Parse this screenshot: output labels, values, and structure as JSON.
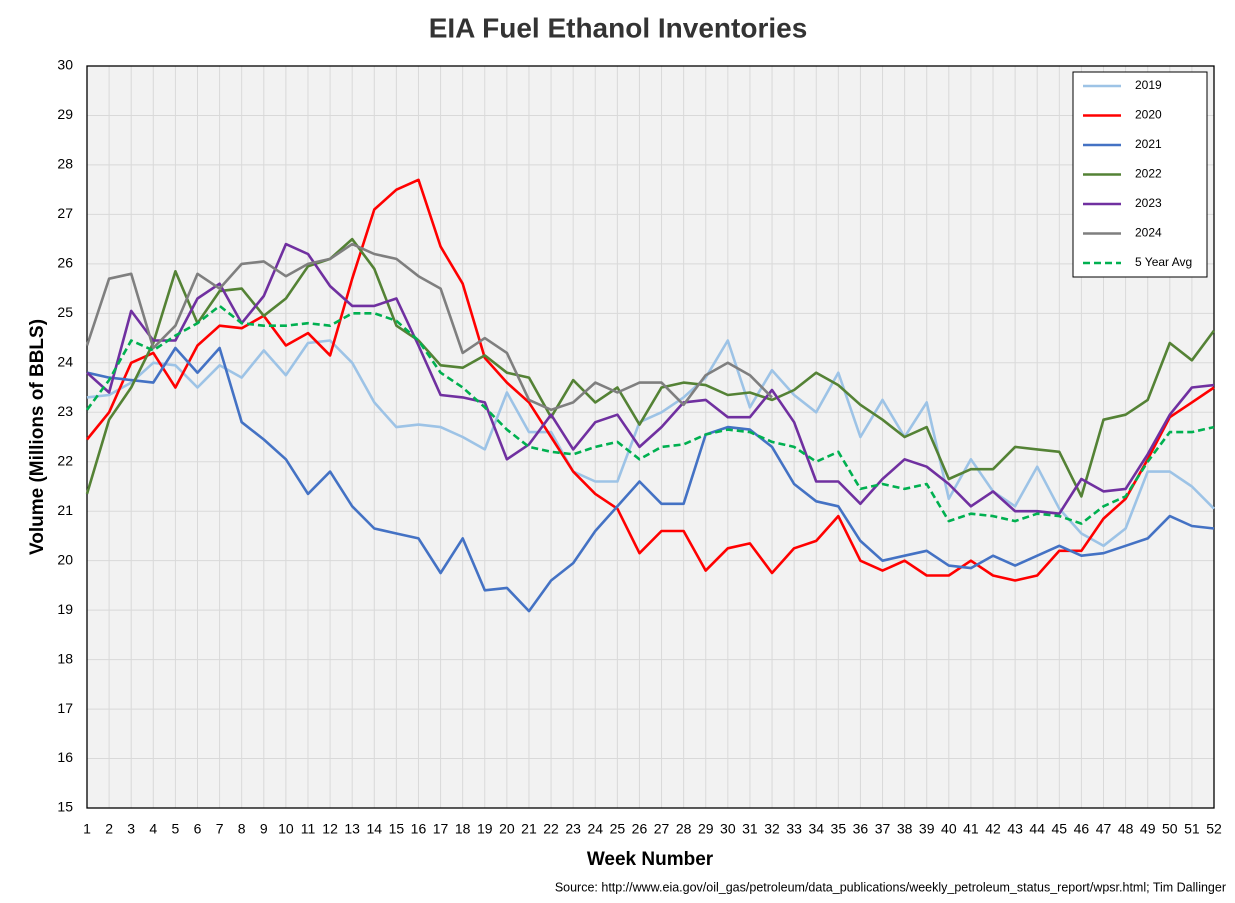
{
  "chart_data": {
    "type": "line",
    "title": "EIA Fuel Ethanol Inventories",
    "x_label": "Week Number",
    "y_label": "Volume (Millions of BBLS)",
    "source": "Source: http://www.eia.gov/oil_gas/petroleum/data_publications/weekly_petroleum_status_report/wpsr.html; Tim Dallinger",
    "x": [
      1,
      2,
      3,
      4,
      5,
      6,
      7,
      8,
      9,
      10,
      11,
      12,
      13,
      14,
      15,
      16,
      17,
      18,
      19,
      20,
      21,
      22,
      23,
      24,
      25,
      26,
      27,
      28,
      29,
      30,
      31,
      32,
      33,
      34,
      35,
      36,
      37,
      38,
      39,
      40,
      41,
      42,
      43,
      44,
      45,
      46,
      47,
      48,
      49,
      50,
      51,
      52
    ],
    "xlim": [
      1,
      52
    ],
    "xticks": [
      1,
      2,
      3,
      4,
      5,
      6,
      7,
      8,
      9,
      10,
      11,
      12,
      13,
      14,
      15,
      16,
      17,
      18,
      19,
      20,
      21,
      22,
      23,
      24,
      25,
      26,
      27,
      28,
      29,
      30,
      31,
      32,
      33,
      34,
      35,
      36,
      37,
      38,
      39,
      40,
      41,
      42,
      43,
      44,
      45,
      46,
      47,
      48,
      49,
      50,
      51,
      52
    ],
    "ylim": [
      15,
      30
    ],
    "yticks": [
      15,
      16,
      17,
      18,
      19,
      20,
      21,
      22,
      23,
      24,
      25,
      26,
      27,
      28,
      29,
      30
    ],
    "grid": true,
    "legend": "upper right",
    "series": [
      {
        "name": "2019",
        "color": "#9dc3e6",
        "values": [
          23.3,
          23.35,
          23.6,
          24.0,
          23.95,
          23.5,
          23.95,
          23.7,
          24.25,
          23.75,
          24.4,
          24.45,
          24.0,
          23.2,
          22.7,
          22.75,
          22.7,
          22.5,
          22.25,
          23.4,
          22.6,
          22.6,
          21.8,
          21.6,
          21.6,
          22.8,
          23.0,
          23.3,
          23.7,
          24.45,
          23.1,
          23.85,
          23.35,
          23.0,
          23.8,
          22.5,
          23.25,
          22.5,
          23.2,
          21.25,
          22.05,
          21.4,
          21.1,
          21.9,
          21.05,
          20.55,
          20.3,
          20.65,
          21.8,
          21.8,
          21.5,
          21.05
        ]
      },
      {
        "name": "2020",
        "color": "#ff0000",
        "values": [
          22.45,
          23.0,
          24.0,
          24.2,
          23.5,
          24.35,
          24.75,
          24.7,
          24.95,
          24.35,
          24.6,
          24.15,
          25.7,
          27.1,
          27.5,
          27.7,
          26.35,
          25.6,
          24.1,
          23.6,
          23.2,
          22.5,
          21.8,
          21.35,
          21.05,
          20.15,
          20.6,
          20.6,
          19.8,
          20.25,
          20.35,
          19.75,
          20.25,
          20.4,
          20.9,
          20.0,
          19.8,
          20.0,
          19.7,
          19.7,
          20.0,
          19.7,
          19.6,
          19.7,
          20.2,
          20.2,
          20.85,
          21.25,
          22.05,
          22.9,
          23.2,
          23.5
        ]
      },
      {
        "name": "2021",
        "color": "#4472c4",
        "values": [
          23.8,
          23.7,
          23.65,
          23.6,
          24.3,
          23.8,
          24.3,
          22.8,
          22.45,
          22.05,
          21.35,
          21.8,
          21.1,
          20.65,
          20.55,
          20.45,
          19.75,
          20.45,
          19.4,
          19.45,
          18.98,
          19.6,
          19.95,
          20.6,
          21.1,
          21.6,
          21.15,
          21.15,
          22.55,
          22.7,
          22.65,
          22.3,
          21.55,
          21.2,
          21.1,
          20.4,
          20.0,
          20.1,
          20.2,
          19.9,
          19.85,
          20.1,
          19.9,
          20.1,
          20.3,
          20.1,
          20.15,
          20.3,
          20.45,
          20.9,
          20.7,
          20.65
        ]
      },
      {
        "name": "2022",
        "color": "#548235",
        "values": [
          21.35,
          22.85,
          23.5,
          24.4,
          25.85,
          24.8,
          25.45,
          25.5,
          24.95,
          25.3,
          25.95,
          26.1,
          26.5,
          25.9,
          24.75,
          24.45,
          23.95,
          23.9,
          24.15,
          23.8,
          23.7,
          22.9,
          23.65,
          23.2,
          23.5,
          22.75,
          23.5,
          23.6,
          23.55,
          23.35,
          23.4,
          23.25,
          23.45,
          23.8,
          23.55,
          23.15,
          22.85,
          22.5,
          22.7,
          21.65,
          21.85,
          21.85,
          22.3,
          22.25,
          22.2,
          21.3,
          22.85,
          22.95,
          23.25,
          24.4,
          24.05,
          24.65
        ]
      },
      {
        "name": "2023",
        "color": "#7030a0",
        "values": [
          23.8,
          23.4,
          25.05,
          24.45,
          24.45,
          25.3,
          25.6,
          24.8,
          25.35,
          26.4,
          26.2,
          25.55,
          25.15,
          25.15,
          25.3,
          24.35,
          23.35,
          23.3,
          23.2,
          22.05,
          22.35,
          22.95,
          22.25,
          22.8,
          22.95,
          22.3,
          22.7,
          23.2,
          23.25,
          22.9,
          22.9,
          23.45,
          22.8,
          21.6,
          21.6,
          21.15,
          21.65,
          22.05,
          21.9,
          21.55,
          21.1,
          21.4,
          21.0,
          21.0,
          20.95,
          21.65,
          21.4,
          21.45,
          22.15,
          22.95,
          23.5,
          23.55
        ]
      },
      {
        "name": "2024",
        "color": "#7f7f7f",
        "values": [
          24.35,
          25.7,
          25.8,
          24.3,
          24.75,
          25.8,
          25.5,
          26.0,
          26.05,
          25.75,
          26.0,
          26.1,
          26.4,
          26.2,
          26.1,
          25.75,
          25.5,
          24.2,
          24.5,
          24.2,
          23.25,
          23.05,
          23.2,
          23.6,
          23.4,
          23.6,
          23.6,
          23.15,
          23.75,
          24.0,
          23.75,
          23.3,
          null,
          null,
          null,
          null,
          null,
          null,
          null,
          null,
          null,
          null,
          null,
          null,
          null,
          null,
          null,
          null,
          null,
          null,
          null,
          null
        ]
      },
      {
        "name": "5 Year Avg",
        "color": "#00b050",
        "dashed": true,
        "values": [
          23.05,
          23.65,
          24.45,
          24.25,
          24.55,
          24.8,
          25.15,
          24.8,
          24.75,
          24.75,
          24.8,
          24.75,
          25.0,
          25.0,
          24.85,
          24.45,
          23.8,
          23.5,
          23.1,
          22.65,
          22.3,
          22.2,
          22.15,
          22.3,
          22.4,
          22.05,
          22.3,
          22.35,
          22.55,
          22.65,
          22.6,
          22.4,
          22.3,
          22.0,
          22.2,
          21.45,
          21.55,
          21.45,
          21.55,
          20.8,
          20.95,
          20.9,
          20.8,
          20.95,
          20.9,
          20.75,
          21.1,
          21.3,
          22.0,
          22.6,
          22.6,
          22.7
        ]
      }
    ]
  }
}
